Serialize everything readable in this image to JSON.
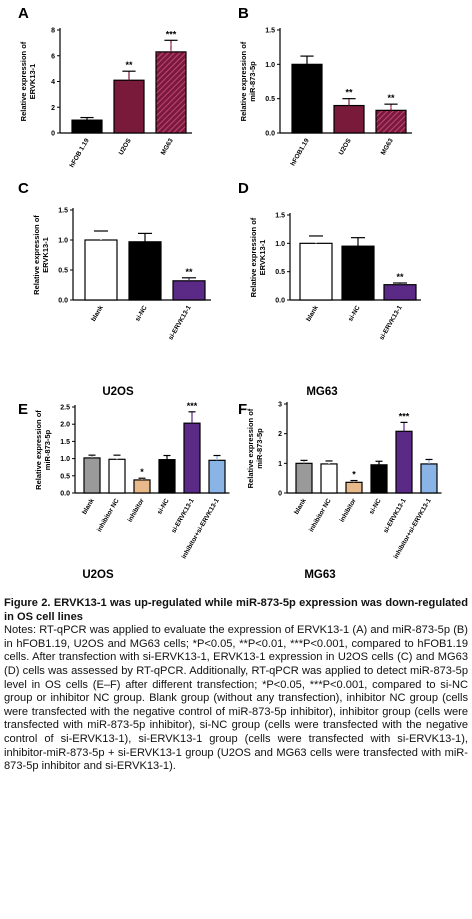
{
  "colors": {
    "black": "#000000",
    "maroon": "#7a1a3a",
    "maroon_hatch": "#c2457a",
    "white": "#ffffff",
    "purple": "#5a2a86",
    "tan": "#e8b98a",
    "gray": "#9a9a9a",
    "blue": "#8ab3e6"
  },
  "chart_data": [
    {
      "panel": "A",
      "type": "bar",
      "ylabel": "Relative expression of ERVK13-1",
      "ylim": [
        0,
        8
      ],
      "yticks": [
        0,
        2,
        4,
        6,
        8
      ],
      "categories": [
        "hFOB 1.19",
        "U2OS",
        "MG63"
      ],
      "values": [
        1.0,
        4.1,
        6.3
      ],
      "errors": [
        0.2,
        0.7,
        0.9
      ],
      "sig": [
        "",
        "**",
        "***"
      ],
      "fills": [
        "black",
        "maroon",
        "hatch"
      ]
    },
    {
      "panel": "B",
      "type": "bar",
      "ylabel": "Relative expression of miR-873-5p",
      "ylim": [
        0,
        1.5
      ],
      "yticks": [
        "0.0",
        "0.5",
        "1.0",
        "1.5"
      ],
      "categories": [
        "hFOB1.19",
        "U2OS",
        "MG63"
      ],
      "values": [
        1.0,
        0.4,
        0.33
      ],
      "errors": [
        0.12,
        0.1,
        0.09
      ],
      "sig": [
        "",
        "**",
        "**"
      ],
      "fills": [
        "black",
        "maroon",
        "hatch"
      ]
    },
    {
      "panel": "C",
      "type": "bar",
      "ylabel": "Relative expression of ERVK13-1",
      "ylim": [
        0,
        1.5
      ],
      "yticks": [
        "0.0",
        "0.5",
        "1.0",
        "1.5"
      ],
      "categories": [
        "blank",
        "si-NC",
        "si-ERVK13-1"
      ],
      "values": [
        1.0,
        0.97,
        0.32
      ],
      "errors": [
        0.15,
        0.14,
        0.05
      ],
      "sig": [
        "",
        "",
        "**"
      ],
      "fills": [
        "white",
        "black",
        "purple"
      ],
      "cell_line": "U2OS"
    },
    {
      "panel": "D",
      "type": "bar",
      "ylabel": "Relative expression of ERVK13-1",
      "ylim": [
        0,
        1.5
      ],
      "yticks": [
        "0.0",
        "0.5",
        "1.0",
        "1.5"
      ],
      "categories": [
        "blank",
        "si-NC",
        "si-ERVK13-1"
      ],
      "values": [
        1.0,
        0.95,
        0.27
      ],
      "errors": [
        0.13,
        0.15,
        0.03
      ],
      "sig": [
        "",
        "",
        "**"
      ],
      "fills": [
        "white",
        "black",
        "purple"
      ],
      "cell_line": "MG63"
    },
    {
      "panel": "E",
      "type": "bar",
      "ylabel": "Relative expression of miR-873-5p",
      "ylim": [
        0,
        2.5
      ],
      "yticks": [
        "0.0",
        "0.5",
        "1.0",
        "1.5",
        "2.0",
        "2.5"
      ],
      "categories": [
        "blank",
        "inhibitor NC",
        "inhibitor",
        "si-NC",
        "si-ERVK13-1",
        "inhibitor+si-ERVK13-1"
      ],
      "values": [
        1.02,
        0.98,
        0.38,
        0.97,
        2.03,
        0.95
      ],
      "errors": [
        0.08,
        0.12,
        0.05,
        0.12,
        0.33,
        0.14
      ],
      "sig": [
        "",
        "",
        "*",
        "",
        "***",
        ""
      ],
      "fills": [
        "gray",
        "white",
        "tan",
        "black",
        "purple",
        "blue"
      ],
      "cell_line": "U2OS"
    },
    {
      "panel": "F",
      "type": "bar",
      "ylabel": "Relative expression of miR-873-5p",
      "ylim": [
        0,
        3
      ],
      "yticks": [
        "0",
        "1",
        "2",
        "3"
      ],
      "categories": [
        "blank",
        "inhibitor NC",
        "inhibitor",
        "si-NC",
        "si-ERVK13-1",
        "inhibitor+si-ERVK13-1"
      ],
      "values": [
        1.0,
        0.98,
        0.36,
        0.95,
        2.08,
        0.98
      ],
      "errors": [
        0.1,
        0.1,
        0.06,
        0.12,
        0.3,
        0.15
      ],
      "sig": [
        "",
        "",
        "*",
        "",
        "***",
        ""
      ],
      "fills": [
        "gray",
        "white",
        "tan",
        "black",
        "purple",
        "blue"
      ],
      "cell_line": "MG63"
    }
  ],
  "caption": {
    "title": "Figure 2. ERVK13-1 was up-regulated while miR-873-5p expression was down-regulated in OS cell lines",
    "notes": "Notes: RT-qPCR was applied to evaluate the expression of ERVK13-1 (A) and miR-873-5p (B) in hFOB1.19, U2OS and MG63 cells; *P<0.05, **P<0.01, ***P<0.001, compared to hFOB1.19 cells. After transfection with si-ERVK13-1, ERVK13-1 expression in U2OS cells (C) and MG63 (D) cells was assessed by RT-qPCR. Additionally, RT-qPCR was applied to detect miR-873-5p level in OS cells (E–F) after different transfection; *P<0.05, ***P<0.001, compared to si-NC group or inhibitor NC group. Blank group (without any transfection), inhibitor NC group (cells were transfected with the negative control of miR-873-5p inhibitor), inhibitor group (cells were transfected with miR-873-5p inhibitor), si-NC group (cells were transfected with the negative control of si-ERVK13-1), si-ERVK13-1 group (cells were transfected with si-ERVK13-1), inhibitor-miR-873-5p + si-ERVK13-1 group (U2OS and MG63 cells were transfected with miR-873-5p inhibitor and si-ERVK13-1)."
  }
}
